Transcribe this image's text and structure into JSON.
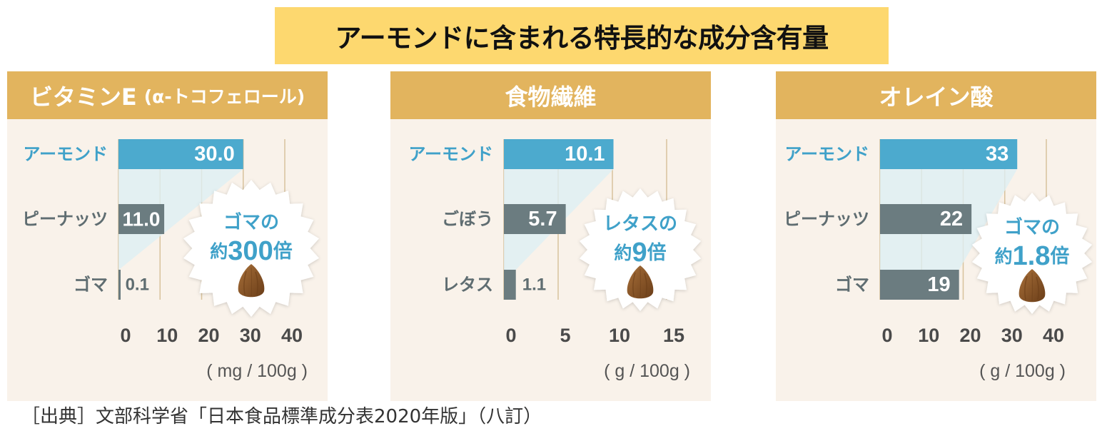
{
  "title": "アーモンドに含まれる特長的な成分含有量",
  "source": "［出典］文部科学省「日本食品標準成分表2020年版」（八訂）",
  "colors": {
    "title_bg": "#FDD86F",
    "title_text": "#111111",
    "header_bg": "#E2B45E",
    "header_text": "#FFFFFF",
    "panel_bg": "#F9F2EA",
    "highlight_bar": "#4CAACE",
    "other_bar": "#6B7C80",
    "highlight_label": "#3FA1C9",
    "other_label": "#5F6D71",
    "value_inside": "#FFFFFF",
    "value_outside": "#5F6D71",
    "gridline": "#D8C29C",
    "shading": "#DDEFF4",
    "badge_fill": "#FFFFFF",
    "badge_text": "#3FA1C9",
    "almond_light": "#A8703A",
    "almond_dark": "#6A3D18",
    "tick_text": "#4A4A4A",
    "unit_text": "#555555",
    "footer_text": "#333333"
  },
  "chart_data": [
    {
      "type": "bar",
      "orientation": "horizontal",
      "title": "ビタミンE",
      "title_note": "(α-トコフェロール)",
      "categories": [
        "アーモンド",
        "ピーナッツ",
        "ゴマ"
      ],
      "values": [
        30.0,
        11.0,
        0.1
      ],
      "value_labels": [
        "30.0",
        "11.0",
        "0.1"
      ],
      "xlim": [
        0,
        40
      ],
      "xticks": [
        0,
        10,
        20,
        30,
        40
      ],
      "xlabel": "( mg / 100g )",
      "grid": true,
      "annotation": {
        "line1": "ゴマの",
        "prefix": "約",
        "value": "300",
        "suffix": "倍",
        "icon": "almond-icon"
      }
    },
    {
      "type": "bar",
      "orientation": "horizontal",
      "title": "食物繊維",
      "categories": [
        "アーモンド",
        "ごぼう",
        "レタス"
      ],
      "values": [
        10.1,
        5.7,
        1.1
      ],
      "value_labels": [
        "10.1",
        "5.7",
        "1.1"
      ],
      "xlim": [
        0,
        15
      ],
      "xticks": [
        0,
        5,
        10,
        15
      ],
      "xlabel": "( g / 100g )",
      "grid": true,
      "annotation": {
        "line1": "レタスの",
        "prefix": "約",
        "value": "9",
        "suffix": "倍",
        "icon": "almond-icon"
      }
    },
    {
      "type": "bar",
      "orientation": "horizontal",
      "title": "オレイン酸",
      "categories": [
        "アーモンド",
        "ピーナッツ",
        "ゴマ"
      ],
      "values": [
        33,
        22,
        19
      ],
      "value_labels": [
        "33",
        "22",
        "19"
      ],
      "xlim": [
        0,
        40
      ],
      "xticks": [
        0,
        10,
        20,
        30,
        40
      ],
      "xlabel": "( g / 100g )",
      "grid": true,
      "annotation": {
        "line1": "ゴマの",
        "prefix": "約",
        "value": "1.8",
        "suffix": "倍",
        "icon": "almond-icon"
      }
    }
  ]
}
